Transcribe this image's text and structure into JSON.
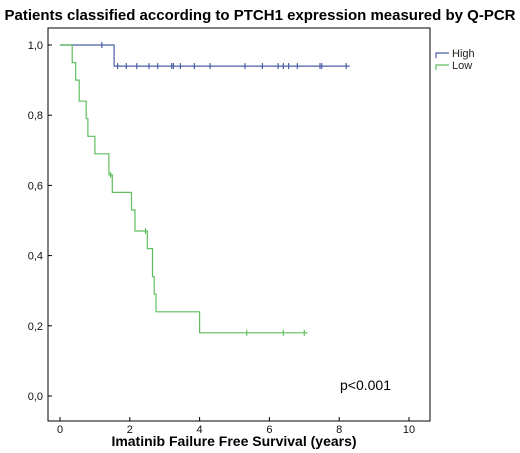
{
  "chart_data": {
    "type": "line",
    "subtype": "kaplan-meier-step",
    "title": "Patients classified according to PTCH1 expression measured by Q-PCR",
    "xlabel": "Imatinib Failure Free Survival (years)",
    "ylabel": "",
    "xlim": [
      0,
      10
    ],
    "ylim": [
      0,
      1
    ],
    "x_ticks": [
      0,
      2,
      4,
      6,
      8,
      10
    ],
    "x_tick_labels": [
      "0",
      "2",
      "4",
      "6",
      "8",
      "10"
    ],
    "y_ticks": [
      0,
      0.2,
      0.4,
      0.6,
      0.8,
      1.0
    ],
    "y_tick_labels": [
      "0,0",
      "0,2",
      "0,4",
      "0,6",
      "0,8",
      "1,0"
    ],
    "grid": false,
    "legend_position": "top-right",
    "annotation": "p<0.001",
    "series": [
      {
        "name": "High",
        "color": "#4a5fa6",
        "steps": [
          [
            0,
            1.0
          ],
          [
            1.55,
            0.94
          ],
          [
            8.3,
            0.94
          ]
        ],
        "censored": [
          [
            1.2,
            1.0
          ],
          [
            1.65,
            0.94
          ],
          [
            1.9,
            0.94
          ],
          [
            2.2,
            0.94
          ],
          [
            2.55,
            0.94
          ],
          [
            2.8,
            0.94
          ],
          [
            3.2,
            0.94
          ],
          [
            3.25,
            0.94
          ],
          [
            3.45,
            0.94
          ],
          [
            3.85,
            0.94
          ],
          [
            4.3,
            0.94
          ],
          [
            5.3,
            0.94
          ],
          [
            5.8,
            0.94
          ],
          [
            6.25,
            0.94
          ],
          [
            6.4,
            0.94
          ],
          [
            6.55,
            0.94
          ],
          [
            6.8,
            0.94
          ],
          [
            7.45,
            0.94
          ],
          [
            7.5,
            0.94
          ],
          [
            8.2,
            0.94
          ]
        ]
      },
      {
        "name": "Low",
        "color": "#5fbf5f",
        "steps": [
          [
            0,
            1.0
          ],
          [
            0.35,
            0.95
          ],
          [
            0.45,
            0.9
          ],
          [
            0.55,
            0.84
          ],
          [
            0.75,
            0.79
          ],
          [
            0.8,
            0.74
          ],
          [
            1.0,
            0.69
          ],
          [
            1.4,
            0.63
          ],
          [
            1.5,
            0.58
          ],
          [
            2.05,
            0.53
          ],
          [
            2.15,
            0.47
          ],
          [
            2.5,
            0.42
          ],
          [
            2.65,
            0.34
          ],
          [
            2.7,
            0.29
          ],
          [
            2.75,
            0.24
          ],
          [
            4.0,
            0.18
          ],
          [
            7.1,
            0.18
          ]
        ],
        "censored": [
          [
            1.45,
            0.63
          ],
          [
            2.45,
            0.47
          ],
          [
            5.35,
            0.18
          ],
          [
            6.4,
            0.18
          ],
          [
            7.0,
            0.18
          ]
        ]
      }
    ]
  }
}
